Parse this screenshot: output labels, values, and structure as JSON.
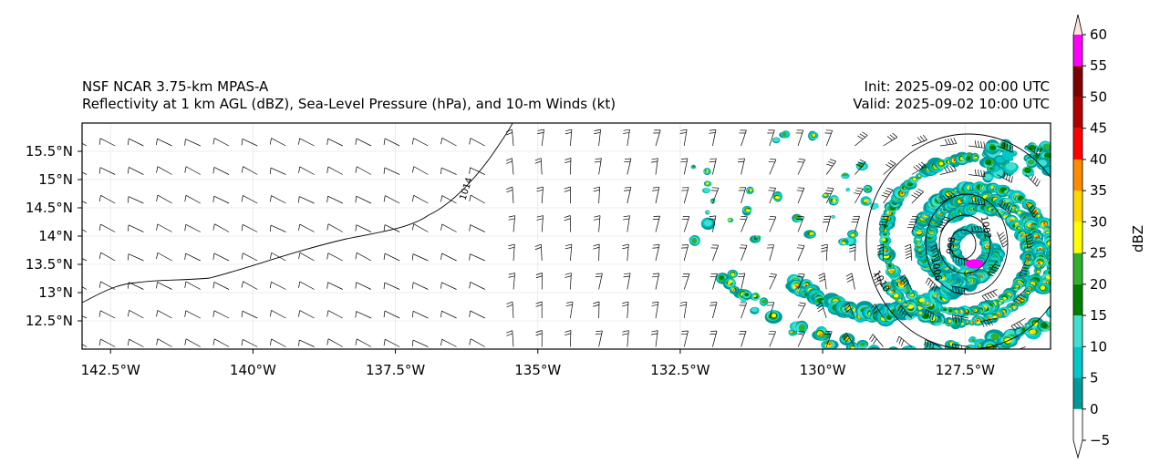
{
  "title": {
    "model": "NSF NCAR 3.75-km MPAS-A",
    "fields": "Reflectivity at 1 km AGL (dBZ), Sea-Level Pressure (hPa), and 10-m Winds (kt)",
    "init": "Init: 2025-09-02 00:00 UTC",
    "valid": "Valid: 2025-09-02 10:00 UTC"
  },
  "map": {
    "lon_ticks": [
      "142.5°W",
      "140°W",
      "137.5°W",
      "135°W",
      "132.5°W",
      "130°W",
      "127.5°W"
    ],
    "lon_values": [
      -142.5,
      -140,
      -137.5,
      -135,
      -132.5,
      -130,
      -127.5
    ],
    "lat_ticks": [
      "15.5°N",
      "15°N",
      "14.5°N",
      "14°N",
      "13.5°N",
      "13°N",
      "12.5°N"
    ],
    "lat_values": [
      15.5,
      15,
      14.5,
      14,
      13.5,
      13,
      12.5
    ],
    "lon_range": [
      -143,
      -126
    ],
    "lat_range": [
      12,
      16
    ],
    "isobar_labels": [
      "1014",
      "1010",
      "1006",
      "1002",
      "998"
    ],
    "storm_center": {
      "lon": -127.4,
      "lat": 13.8
    }
  },
  "colorbar": {
    "label": "dBZ",
    "levels": [
      "-5",
      "0",
      "5",
      "10",
      "15",
      "20",
      "25",
      "30",
      "35",
      "40",
      "45",
      "50",
      "55",
      "60"
    ],
    "colors": [
      "#ffffff",
      "#009999",
      "#00c8c8",
      "#40e0d0",
      "#008000",
      "#30b030",
      "#ffff00",
      "#ffd700",
      "#ff8c00",
      "#ff0000",
      "#b00000",
      "#800000",
      "#ff00ff",
      "#fde5dc"
    ]
  }
}
